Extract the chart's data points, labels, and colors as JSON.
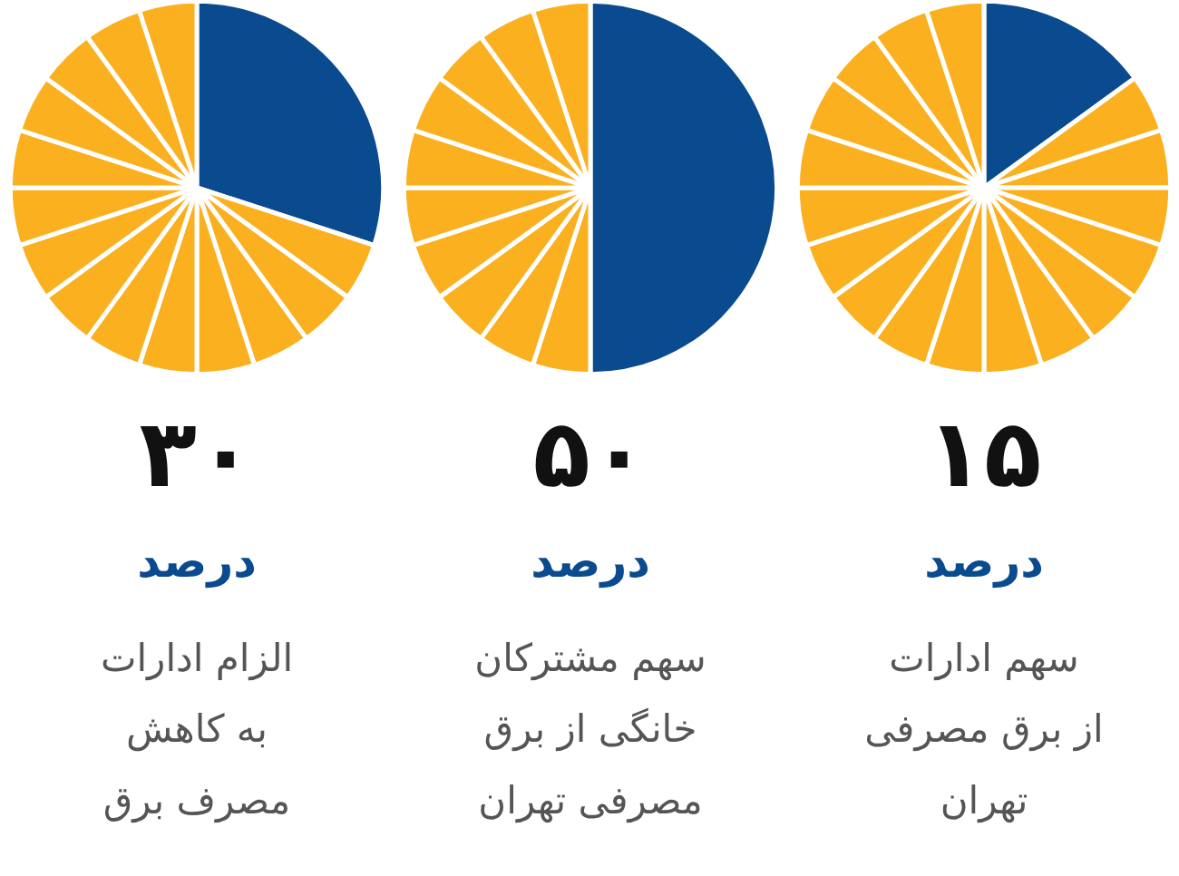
{
  "chart_data": [
    {
      "type": "pie",
      "title": "۱۵",
      "subtitle": "درصد",
      "annotations": [
        "سهم ادارات",
        "از برق مصرفی",
        "تهران"
      ],
      "categories": [
        null,
        null,
        null,
        null,
        null,
        null,
        null,
        null,
        null,
        null,
        null,
        null,
        null,
        null,
        null,
        null,
        null,
        null
      ],
      "values": [
        15,
        5,
        5,
        5,
        5,
        5,
        5,
        5,
        5,
        5,
        5,
        5,
        5,
        5,
        5,
        5,
        5,
        5
      ],
      "colors": [
        "#0a4a8f",
        "#fbb01f",
        "#fbb01f",
        "#fbb01f",
        "#fbb01f",
        "#fbb01f",
        "#fbb01f",
        "#fbb01f",
        "#fbb01f",
        "#fbb01f",
        "#fbb01f",
        "#fbb01f",
        "#fbb01f",
        "#fbb01f",
        "#fbb01f",
        "#fbb01f",
        "#fbb01f",
        "#fbb01f"
      ]
    },
    {
      "type": "pie",
      "title": "۵۰",
      "subtitle": "درصد",
      "annotations": [
        "سهم مشترکان",
        "خانگی از برق",
        "مصرفی تهران"
      ],
      "categories": [
        null,
        null,
        null,
        null,
        null,
        null,
        null,
        null,
        null,
        null,
        null
      ],
      "values": [
        50,
        5,
        5,
        5,
        5,
        5,
        5,
        5,
        5,
        5,
        5
      ],
      "colors": [
        "#0a4a8f",
        "#fbb01f",
        "#fbb01f",
        "#fbb01f",
        "#fbb01f",
        "#fbb01f",
        "#fbb01f",
        "#fbb01f",
        "#fbb01f",
        "#fbb01f",
        "#fbb01f"
      ]
    },
    {
      "type": "pie",
      "title": "۳۰",
      "subtitle": "درصد",
      "annotations": [
        "الزام ادارات",
        "به کاهش",
        "مصرف برق"
      ],
      "categories": [
        null,
        null,
        null,
        null,
        null,
        null,
        null,
        null,
        null,
        null,
        null,
        null,
        null,
        null,
        null
      ],
      "values": [
        30,
        5,
        5,
        5,
        5,
        5,
        5,
        5,
        5,
        5,
        5,
        5,
        5,
        5,
        5
      ],
      "colors": [
        "#0a4a8f",
        "#fbb01f",
        "#fbb01f",
        "#fbb01f",
        "#fbb01f",
        "#fbb01f",
        "#fbb01f",
        "#fbb01f",
        "#fbb01f",
        "#fbb01f",
        "#fbb01f",
        "#fbb01f",
        "#fbb01f",
        "#fbb01f",
        "#fbb01f"
      ]
    }
  ]
}
